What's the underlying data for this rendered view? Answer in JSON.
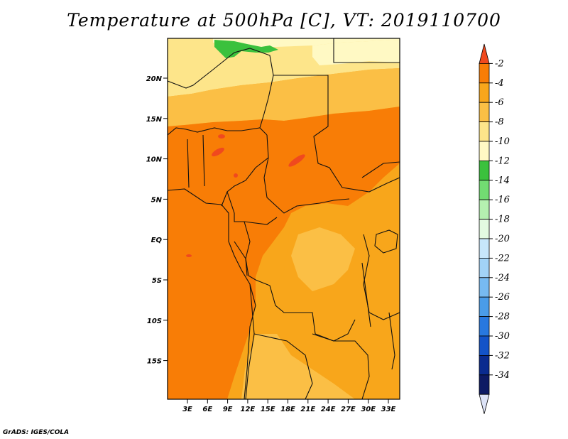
{
  "title": "Temperature at 500hPa [C], VT: 2019110700",
  "credit": "GrADS: IGES/COLA",
  "map": {
    "lat_ticks": [
      "20N",
      "15N",
      "10N",
      "5N",
      "EQ",
      "5S",
      "10S",
      "15S"
    ],
    "lon_ticks": [
      "3E",
      "6E",
      "9E",
      "12E",
      "15E",
      "18E",
      "21E",
      "24E",
      "27E",
      "30E",
      "33E"
    ]
  },
  "colorbar": {
    "labels": [
      "-2",
      "-4",
      "-6",
      "-8",
      "-10",
      "-12",
      "-14",
      "-16",
      "-18",
      "-20",
      "-22",
      "-24",
      "-26",
      "-28",
      "-30",
      "-32",
      "-34"
    ],
    "colors": [
      "#f0491e",
      "#f87d06",
      "#f8a61b",
      "#fbbf45",
      "#fde58a",
      "#fff9c4",
      "#3bc13d",
      "#72dc72",
      "#b5f0b0",
      "#e3fae1",
      "#c7e6fb",
      "#a2d3f7",
      "#77baf1",
      "#4a9ce9",
      "#2878df",
      "#1353c8",
      "#0a2b8f",
      "#0d1a64",
      "#dde3f7"
    ]
  }
}
